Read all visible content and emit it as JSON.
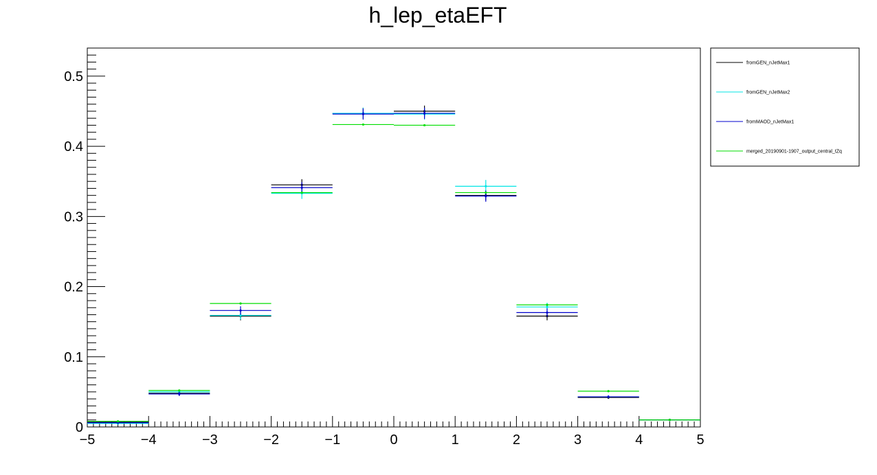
{
  "chart_data": {
    "type": "histogram-errorbar",
    "title": "h_lep_etaEFT",
    "xlabel": "",
    "ylabel": "",
    "xlim": [
      -5,
      5
    ],
    "ylim": [
      0,
      0.54
    ],
    "x_ticks": [
      -5,
      -4,
      -3,
      -2,
      -1,
      0,
      1,
      2,
      3,
      4,
      5
    ],
    "x_tick_labels": [
      "−5",
      "−4",
      "−3",
      "−2",
      "−1",
      "0",
      "1",
      "2",
      "3",
      "4",
      "5"
    ],
    "y_ticks": [
      0,
      0.1,
      0.2,
      0.3,
      0.4,
      0.5
    ],
    "y_tick_labels": [
      "0",
      "0.1",
      "0.2",
      "0.3",
      "0.4",
      "0.5"
    ],
    "grid": false,
    "legend_position": "right",
    "bins": [
      -5,
      -4,
      -3,
      -2,
      -1,
      0,
      1,
      2,
      3,
      4,
      5
    ],
    "series": [
      {
        "name": "fromGEN_nJetMax1",
        "color": "#000000",
        "values": [
          0.007,
          0.048,
          0.158,
          0.345,
          0.447,
          0.45,
          0.33,
          0.158,
          0.042,
          0.01
        ],
        "errors": [
          0.001,
          0.003,
          0.006,
          0.008,
          0.008,
          0.008,
          0.007,
          0.006,
          0.002,
          0.001
        ]
      },
      {
        "name": "fromGEN_nJetMax2",
        "color": "#00e5e5",
        "values": [
          0.005,
          0.05,
          0.159,
          0.333,
          0.447,
          0.446,
          0.343,
          0.171,
          0.043,
          0.01
        ],
        "errors": [
          0.001,
          0.003,
          0.006,
          0.008,
          0.008,
          0.008,
          0.009,
          0.006,
          0.002,
          0.001
        ]
      },
      {
        "name": "fromMAOD_nJetMax1",
        "color": "#0000cc",
        "values": [
          0.006,
          0.047,
          0.166,
          0.341,
          0.446,
          0.447,
          0.329,
          0.163,
          0.043,
          0.01
        ],
        "errors": [
          0.001,
          0.003,
          0.006,
          0.008,
          0.008,
          0.008,
          0.008,
          0.006,
          0.002,
          0.001
        ]
      },
      {
        "name": "merged_20190901-1907_output_central_tZq",
        "color": "#00dd00",
        "values": [
          0.008,
          0.052,
          0.176,
          0.334,
          0.431,
          0.43,
          0.334,
          0.174,
          0.051,
          0.01
        ],
        "errors": [
          0.0005,
          0.001,
          0.001,
          0.001,
          0.001,
          0.001,
          0.001,
          0.001,
          0.001,
          0.0005
        ]
      }
    ]
  }
}
